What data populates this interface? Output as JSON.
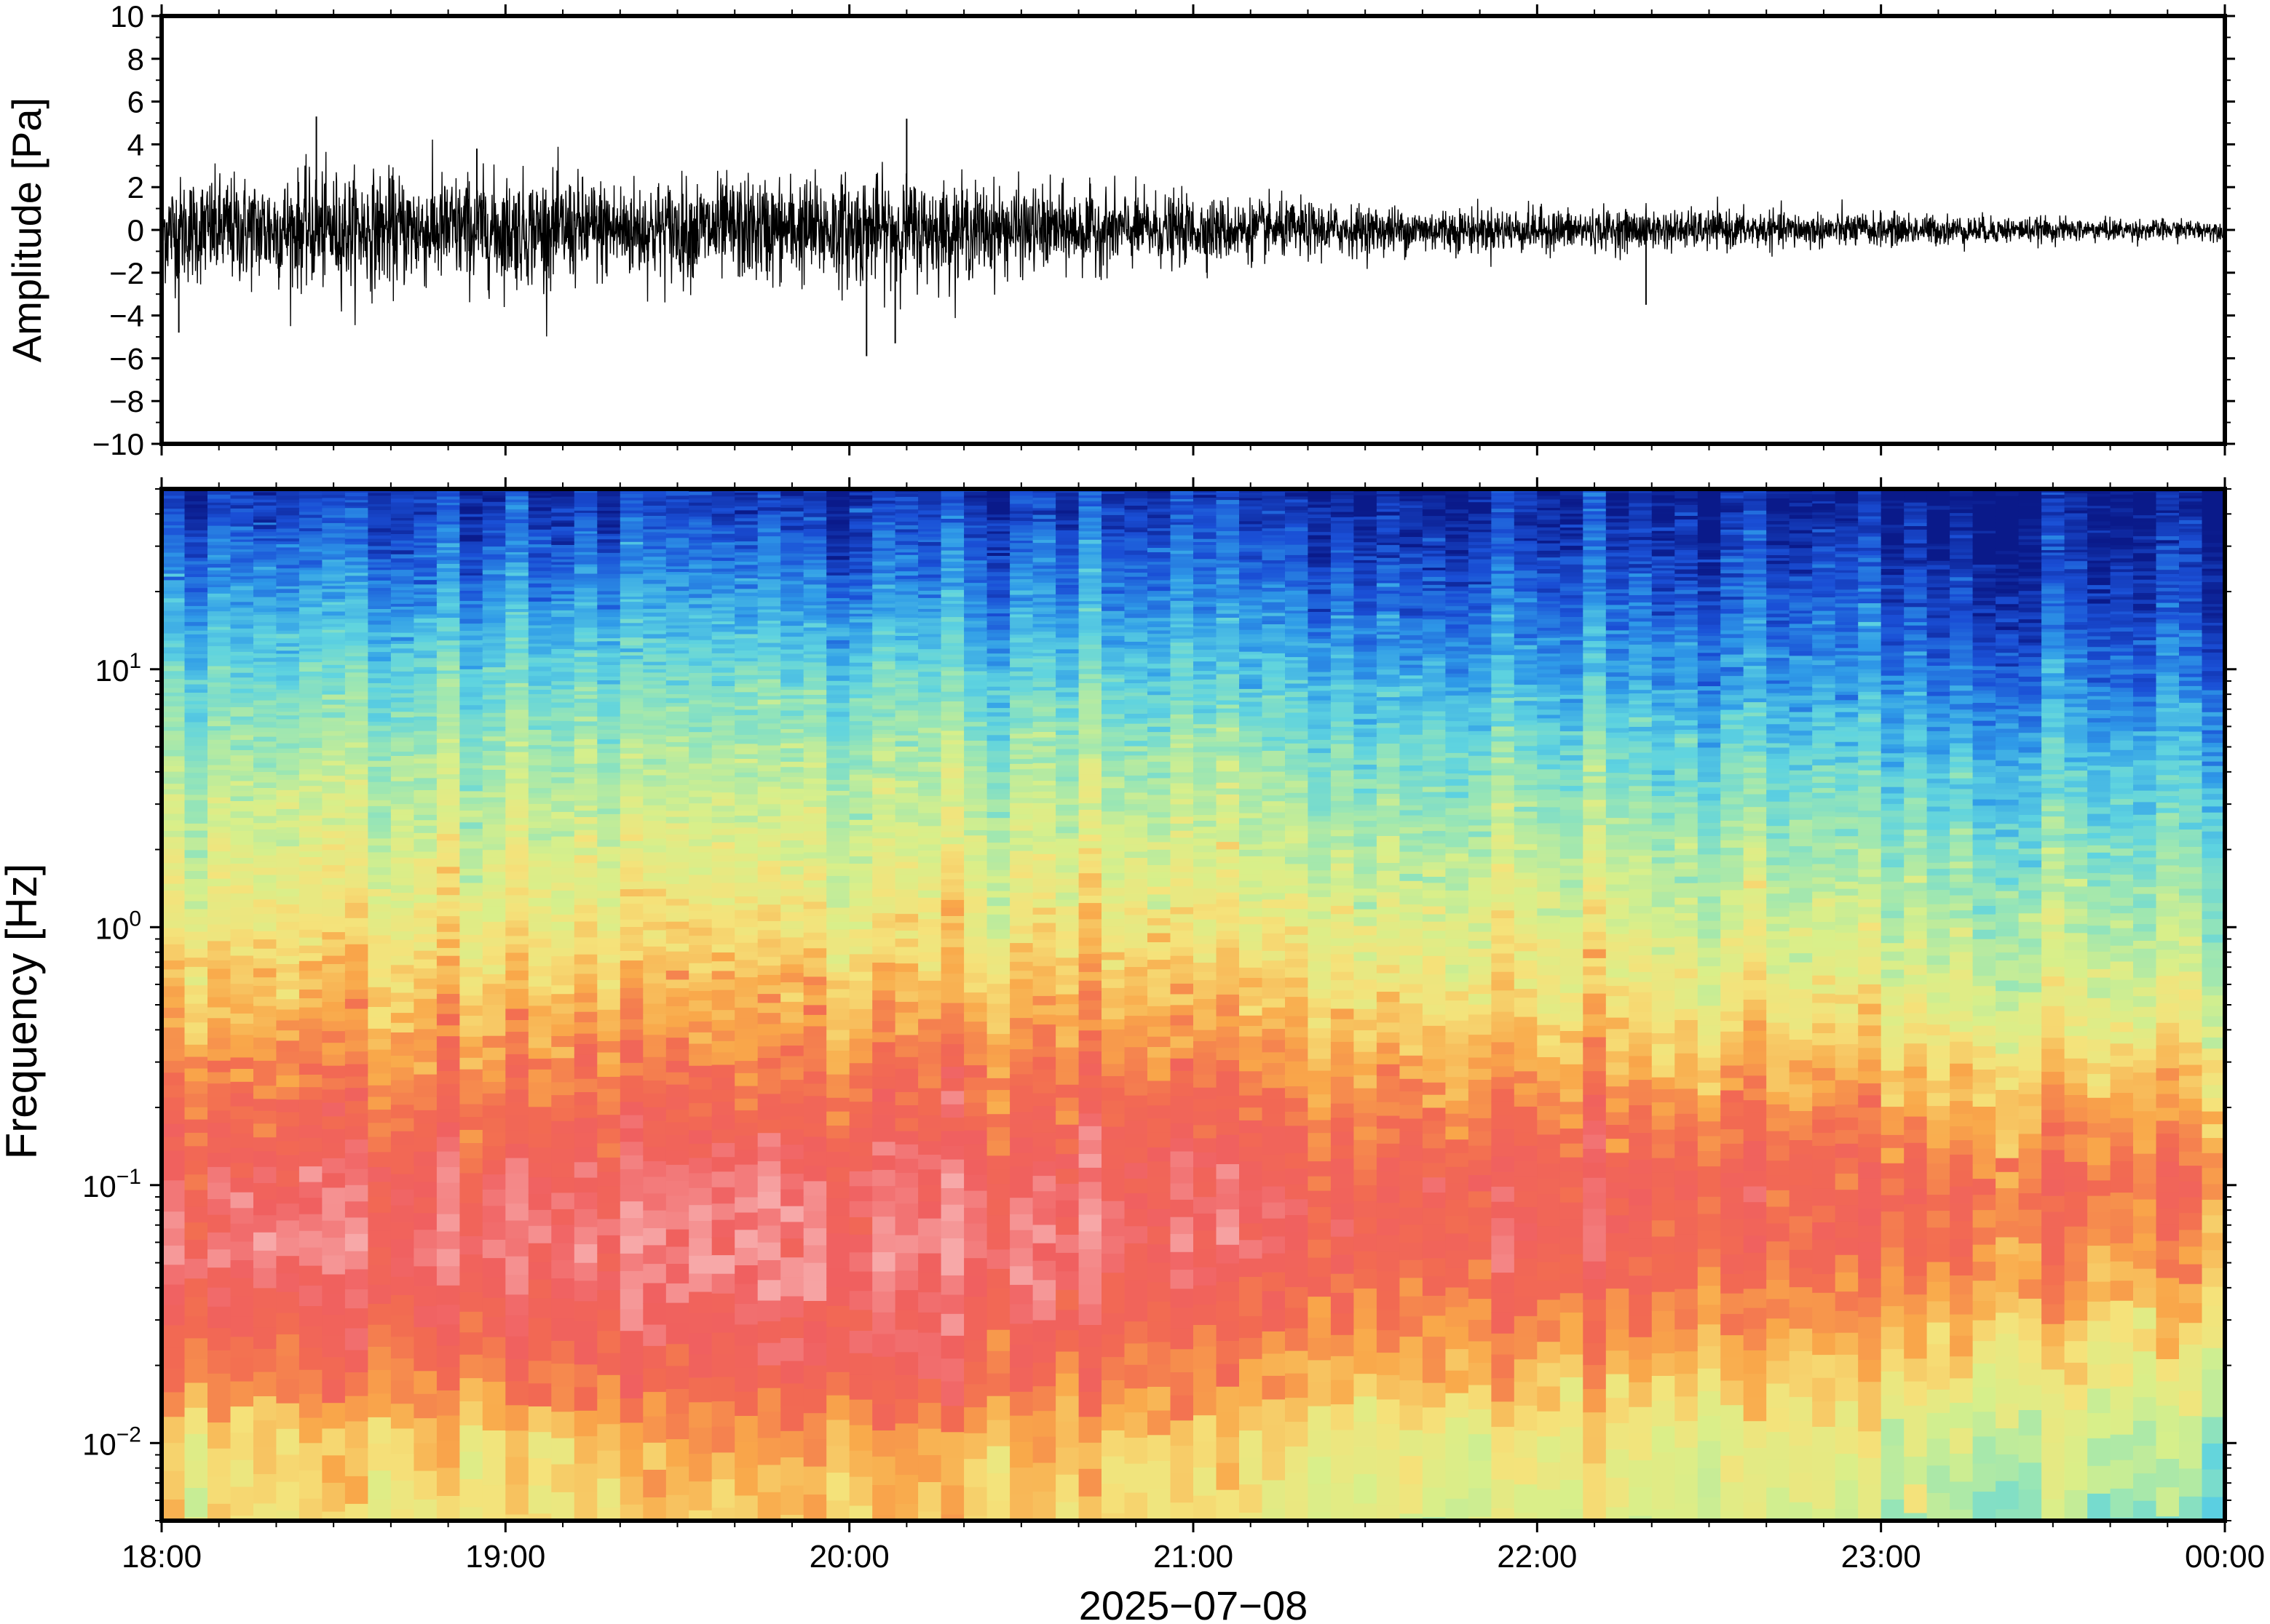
{
  "chart_data": [
    {
      "type": "line",
      "panel": "waveform",
      "ylabel": "Amplitude [Pa]",
      "ylim": [
        -10,
        10
      ],
      "yticks": [
        10,
        8,
        6,
        4,
        2,
        0,
        -2,
        -4,
        -6,
        -8,
        -10
      ],
      "ytick_labels": [
        "10",
        "8",
        "6",
        "4",
        "2",
        "0",
        "−2",
        "−4",
        "−6",
        "−8",
        "−10"
      ],
      "xlim": [
        "2025-07-08T18:00",
        "2025-07-09T00:00"
      ],
      "line_color": "#000000",
      "envelope": {
        "times": [
          "18:00",
          "18:30",
          "19:00",
          "19:30",
          "20:00",
          "20:30",
          "21:00",
          "21:30",
          "22:00",
          "22:30",
          "23:00",
          "23:30",
          "00:00"
        ],
        "typical_abs_pa": [
          2.2,
          2.4,
          2.3,
          2.1,
          2.3,
          1.8,
          1.4,
          1.0,
          0.9,
          0.8,
          0.7,
          0.5,
          0.4
        ]
      },
      "spikes": [
        {
          "time": "18:03",
          "value": -4.8
        },
        {
          "time": "18:27",
          "value": 5.3
        },
        {
          "time": "20:03",
          "value": -5.9
        },
        {
          "time": "20:10",
          "value": 5.2
        },
        {
          "time": "20:08",
          "value": -5.3
        },
        {
          "time": "18:55",
          "value": 3.8
        },
        {
          "time": "22:19",
          "value": -3.5
        }
      ]
    },
    {
      "type": "heatmap",
      "panel": "spectrogram",
      "ylabel": "Frequency [Hz]",
      "yscale": "log",
      "ylim_hz": [
        0.005,
        50
      ],
      "yticks_hz": [
        10,
        1,
        0.1,
        0.01
      ],
      "ytick_labels": [
        {
          "base": "10",
          "exp": "1"
        },
        {
          "base": "10",
          "exp": "0"
        },
        {
          "base": "10",
          "exp": "−1"
        },
        {
          "base": "10",
          "exp": "−2"
        }
      ],
      "xlim": [
        "2025-07-08T18:00",
        "2025-07-09T00:00"
      ],
      "xticks": [
        "18:00",
        "19:00",
        "20:00",
        "21:00",
        "22:00",
        "23:00",
        "00:00"
      ],
      "xlabel": "2025−07−08",
      "colormap": [
        "#0a1a8a",
        "#1a4fd6",
        "#2f9be8",
        "#5ed3e0",
        "#9ae6b4",
        "#d8ef8a",
        "#f5e27a",
        "#f9a84a",
        "#f26a52",
        "#f06060",
        "#f7a8a8"
      ],
      "time_anchors": [
        "18:00",
        "19:00",
        "20:00",
        "21:00",
        "22:00",
        "23:00",
        "00:00"
      ],
      "freq_anchors_hz": [
        50,
        20,
        10,
        5,
        2,
        1,
        0.5,
        0.2,
        0.1,
        0.05,
        0.02,
        0.01,
        0.005
      ],
      "level_anchors": [
        [
          0.05,
          0.2,
          0.32,
          0.42,
          0.52,
          0.58,
          0.68,
          0.8,
          0.9,
          0.93,
          0.78,
          0.62,
          0.6
        ],
        [
          0.06,
          0.21,
          0.33,
          0.43,
          0.53,
          0.6,
          0.69,
          0.81,
          0.92,
          0.94,
          0.82,
          0.65,
          0.6
        ],
        [
          0.04,
          0.19,
          0.32,
          0.42,
          0.52,
          0.59,
          0.69,
          0.82,
          0.94,
          0.96,
          0.88,
          0.72,
          0.66
        ],
        [
          0.03,
          0.15,
          0.26,
          0.38,
          0.48,
          0.56,
          0.65,
          0.79,
          0.88,
          0.86,
          0.74,
          0.6,
          0.55
        ],
        [
          0.01,
          0.12,
          0.21,
          0.33,
          0.45,
          0.53,
          0.6,
          0.76,
          0.86,
          0.84,
          0.68,
          0.55,
          0.52
        ],
        [
          0.0,
          0.1,
          0.18,
          0.28,
          0.4,
          0.48,
          0.56,
          0.72,
          0.83,
          0.8,
          0.64,
          0.52,
          0.48
        ],
        [
          0.0,
          0.06,
          0.14,
          0.24,
          0.36,
          0.44,
          0.52,
          0.68,
          0.8,
          0.7,
          0.56,
          0.46,
          0.36
        ]
      ]
    }
  ]
}
